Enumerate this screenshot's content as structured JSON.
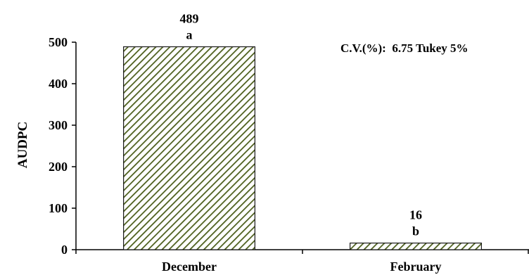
{
  "chart_data": {
    "type": "bar",
    "categories": [
      "December",
      "February"
    ],
    "values": [
      489,
      16
    ],
    "data_labels": [
      "489",
      "16"
    ],
    "significance_letters": [
      "a",
      "b"
    ],
    "ylabel": "AUDPC",
    "xlabel": "",
    "ylim": [
      0,
      500
    ],
    "yticks": [
      0,
      100,
      200,
      300,
      400,
      500
    ],
    "annotation": "C.V.(%):  6.75 Tukey 5%",
    "grid": false,
    "legend": "none",
    "bar_pattern": "diagonal-hatch",
    "colors": {
      "bar_stroke": "#1a1a1a",
      "hatch": "#4b5d1a",
      "axis": "#000000"
    }
  }
}
